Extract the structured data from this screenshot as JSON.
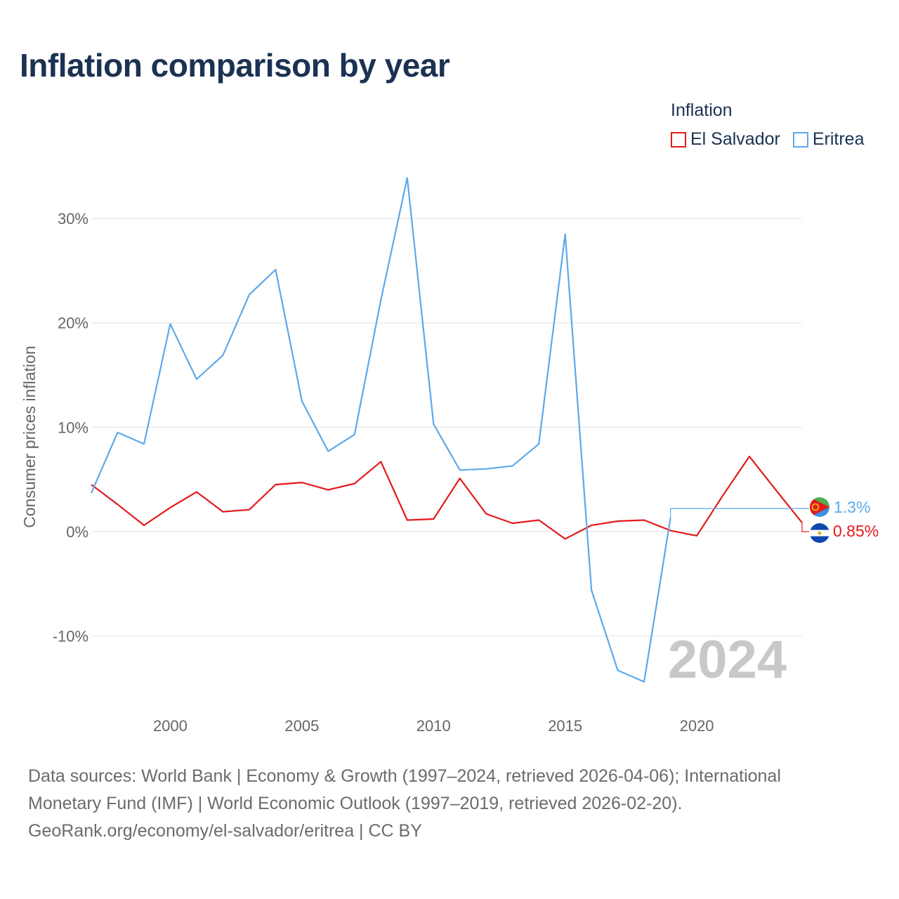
{
  "title": "Inflation comparison by year",
  "legend": {
    "title": "Inflation",
    "items": [
      {
        "name": "El Salvador",
        "color": "#e31a1c"
      },
      {
        "name": "Eritrea",
        "color": "#5da9e9"
      }
    ]
  },
  "year_watermark": "2024",
  "source_text": "Data sources: World Bank | Economy & Growth (1997–2024, retrieved 2026-04-06); International Monetary Fund (IMF) | World Economic Outlook (1997–2019, retrieved 2026-02-20). GeoRank.org/economy/el-salvador/eritrea | CC BY",
  "chart_data": {
    "type": "line",
    "title": "Inflation comparison by year",
    "xlabel": "",
    "ylabel": "Consumer prices inflation",
    "xlim": [
      1997,
      2024
    ],
    "ylim": [
      -16.5,
      36
    ],
    "x_ticks": [
      2000,
      2005,
      2010,
      2015,
      2020
    ],
    "x_tick_labels": [
      "2000",
      "2005",
      "2010",
      "2015",
      "2020"
    ],
    "y_ticks": [
      -10,
      0,
      10,
      20,
      30
    ],
    "y_tick_labels": [
      "-10%",
      "0%",
      "10%",
      "20%",
      "30%"
    ],
    "grid": true,
    "legend_position": "top-right",
    "series": [
      {
        "name": "El Salvador",
        "color": "#e31a1c",
        "end_label": "0.85%",
        "points": [
          [
            1997,
            4.5
          ],
          [
            1998,
            2.6
          ],
          [
            1999,
            0.6
          ],
          [
            2000,
            2.3
          ],
          [
            2001,
            3.8
          ],
          [
            2002,
            1.9
          ],
          [
            2003,
            2.1
          ],
          [
            2004,
            4.5
          ],
          [
            2005,
            4.7
          ],
          [
            2006,
            4.0
          ],
          [
            2007,
            4.6
          ],
          [
            2008,
            6.7
          ],
          [
            2009,
            1.1
          ],
          [
            2010,
            1.2
          ],
          [
            2011,
            5.1
          ],
          [
            2012,
            1.7
          ],
          [
            2013,
            0.8
          ],
          [
            2014,
            1.1
          ],
          [
            2015,
            -0.7
          ],
          [
            2016,
            0.6
          ],
          [
            2017,
            1.0
          ],
          [
            2018,
            1.1
          ],
          [
            2019,
            0.1
          ],
          [
            2020,
            -0.4
          ],
          [
            2021,
            3.5
          ],
          [
            2022,
            7.2
          ],
          [
            2023,
            4.0
          ],
          [
            2024,
            0.85
          ]
        ]
      },
      {
        "name": "Eritrea",
        "color": "#5da9e9",
        "end_label": "1.3%",
        "points": [
          [
            1997,
            3.7
          ],
          [
            1998,
            9.5
          ],
          [
            1999,
            8.4
          ],
          [
            2000,
            19.9
          ],
          [
            2001,
            14.6
          ],
          [
            2002,
            16.9
          ],
          [
            2003,
            22.7
          ],
          [
            2004,
            25.1
          ],
          [
            2005,
            12.5
          ],
          [
            2006,
            7.7
          ],
          [
            2007,
            9.3
          ],
          [
            2008,
            22.2
          ],
          [
            2009,
            33.9
          ],
          [
            2010,
            10.3
          ],
          [
            2011,
            5.9
          ],
          [
            2012,
            6.0
          ],
          [
            2013,
            6.3
          ],
          [
            2014,
            8.4
          ],
          [
            2015,
            28.5
          ],
          [
            2016,
            -5.6
          ],
          [
            2017,
            -13.3
          ],
          [
            2018,
            -14.4
          ],
          [
            2019,
            1.3
          ]
        ]
      }
    ]
  }
}
